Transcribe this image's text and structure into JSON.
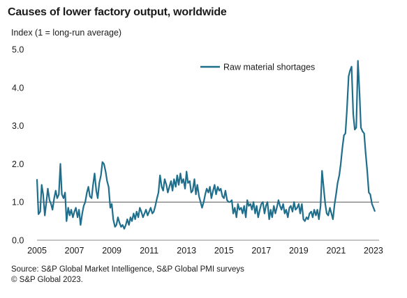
{
  "chart_data": {
    "type": "line",
    "title": "Causes of lower factory output, worldwide",
    "ylabel": "Index (1 = long-run average)",
    "xlabel": "",
    "ylim": [
      0,
      5
    ],
    "xlim": [
      2005,
      2023.3
    ],
    "yticks": [
      "0.0",
      "1.0",
      "2.0",
      "3.0",
      "4.0",
      "5.0"
    ],
    "xticks": [
      "2005",
      "2007",
      "2009",
      "2011",
      "2013",
      "2015",
      "2017",
      "2019",
      "2021",
      "2023"
    ],
    "reference_line": 1.0,
    "legend_position": "top-right",
    "color": "#1f6e8c",
    "series": [
      {
        "name": "Raw material shortages",
        "points": [
          [
            2005.0,
            1.6
          ],
          [
            2005.08,
            0.68
          ],
          [
            2005.17,
            0.75
          ],
          [
            2005.25,
            1.45
          ],
          [
            2005.33,
            1.2
          ],
          [
            2005.42,
            0.65
          ],
          [
            2005.5,
            1.0
          ],
          [
            2005.58,
            1.35
          ],
          [
            2005.67,
            1.05
          ],
          [
            2005.75,
            0.95
          ],
          [
            2005.83,
            0.8
          ],
          [
            2005.92,
            1.1
          ],
          [
            2006.0,
            1.3
          ],
          [
            2006.08,
            1.1
          ],
          [
            2006.17,
            1.2
          ],
          [
            2006.25,
            2.0
          ],
          [
            2006.33,
            1.2
          ],
          [
            2006.42,
            1.1
          ],
          [
            2006.5,
            1.25
          ],
          [
            2006.58,
            0.5
          ],
          [
            2006.67,
            0.85
          ],
          [
            2006.75,
            0.65
          ],
          [
            2006.83,
            0.8
          ],
          [
            2006.92,
            0.6
          ],
          [
            2007.0,
            0.75
          ],
          [
            2007.08,
            0.85
          ],
          [
            2007.17,
            0.6
          ],
          [
            2007.25,
            0.8
          ],
          [
            2007.33,
            0.4
          ],
          [
            2007.42,
            0.7
          ],
          [
            2007.5,
            0.9
          ],
          [
            2007.58,
            1.0
          ],
          [
            2007.67,
            1.25
          ],
          [
            2007.75,
            1.4
          ],
          [
            2007.83,
            1.15
          ],
          [
            2007.92,
            1.1
          ],
          [
            2008.0,
            1.45
          ],
          [
            2008.08,
            1.75
          ],
          [
            2008.17,
            1.3
          ],
          [
            2008.25,
            1.1
          ],
          [
            2008.33,
            1.5
          ],
          [
            2008.42,
            1.7
          ],
          [
            2008.5,
            2.05
          ],
          [
            2008.58,
            2.0
          ],
          [
            2008.67,
            1.8
          ],
          [
            2008.75,
            1.55
          ],
          [
            2008.83,
            1.4
          ],
          [
            2008.92,
            0.85
          ],
          [
            2009.0,
            0.95
          ],
          [
            2009.08,
            0.55
          ],
          [
            2009.17,
            0.35
          ],
          [
            2009.25,
            0.4
          ],
          [
            2009.33,
            0.6
          ],
          [
            2009.42,
            0.45
          ],
          [
            2009.5,
            0.35
          ],
          [
            2009.58,
            0.4
          ],
          [
            2009.67,
            0.3
          ],
          [
            2009.75,
            0.4
          ],
          [
            2009.83,
            0.55
          ],
          [
            2009.92,
            0.4
          ],
          [
            2010.0,
            0.6
          ],
          [
            2010.08,
            0.5
          ],
          [
            2010.17,
            0.7
          ],
          [
            2010.25,
            0.55
          ],
          [
            2010.33,
            0.75
          ],
          [
            2010.42,
            0.6
          ],
          [
            2010.5,
            0.85
          ],
          [
            2010.58,
            0.75
          ],
          [
            2010.67,
            0.6
          ],
          [
            2010.75,
            0.7
          ],
          [
            2010.83,
            0.8
          ],
          [
            2010.92,
            0.65
          ],
          [
            2011.0,
            0.75
          ],
          [
            2011.08,
            0.85
          ],
          [
            2011.17,
            0.7
          ],
          [
            2011.25,
            0.75
          ],
          [
            2011.33,
            0.9
          ],
          [
            2011.42,
            1.1
          ],
          [
            2011.5,
            1.25
          ],
          [
            2011.58,
            1.7
          ],
          [
            2011.67,
            1.4
          ],
          [
            2011.75,
            1.3
          ],
          [
            2011.83,
            1.6
          ],
          [
            2011.92,
            1.45
          ],
          [
            2012.0,
            1.25
          ],
          [
            2012.08,
            1.4
          ],
          [
            2012.17,
            1.55
          ],
          [
            2012.25,
            1.3
          ],
          [
            2012.33,
            1.6
          ],
          [
            2012.42,
            1.4
          ],
          [
            2012.5,
            1.7
          ],
          [
            2012.58,
            1.45
          ],
          [
            2012.67,
            1.75
          ],
          [
            2012.75,
            1.5
          ],
          [
            2012.83,
            1.6
          ],
          [
            2012.92,
            1.35
          ],
          [
            2013.0,
            1.8
          ],
          [
            2013.08,
            1.5
          ],
          [
            2013.17,
            1.55
          ],
          [
            2013.25,
            1.25
          ],
          [
            2013.33,
            1.3
          ],
          [
            2013.42,
            1.6
          ],
          [
            2013.5,
            1.2
          ],
          [
            2013.58,
            1.45
          ],
          [
            2013.67,
            1.15
          ],
          [
            2013.75,
            1.0
          ],
          [
            2013.83,
            0.85
          ],
          [
            2013.92,
            1.0
          ],
          [
            2014.0,
            1.2
          ],
          [
            2014.08,
            1.35
          ],
          [
            2014.17,
            1.25
          ],
          [
            2014.25,
            1.4
          ],
          [
            2014.33,
            1.1
          ],
          [
            2014.42,
            1.3
          ],
          [
            2014.5,
            1.45
          ],
          [
            2014.58,
            1.2
          ],
          [
            2014.67,
            1.4
          ],
          [
            2014.75,
            1.3
          ],
          [
            2014.83,
            1.35
          ],
          [
            2014.92,
            1.15
          ],
          [
            2015.0,
            1.1
          ],
          [
            2015.08,
            1.3
          ],
          [
            2015.17,
            1.05
          ],
          [
            2015.25,
            1.0
          ],
          [
            2015.33,
            1.0
          ],
          [
            2015.42,
            1.05
          ],
          [
            2015.5,
            0.7
          ],
          [
            2015.58,
            0.85
          ],
          [
            2015.67,
            0.6
          ],
          [
            2015.75,
            0.95
          ],
          [
            2015.83,
            0.8
          ],
          [
            2015.92,
            0.85
          ],
          [
            2016.0,
            0.7
          ],
          [
            2016.08,
            0.9
          ],
          [
            2016.17,
            0.6
          ],
          [
            2016.25,
            1.05
          ],
          [
            2016.33,
            0.9
          ],
          [
            2016.42,
            0.95
          ],
          [
            2016.5,
            0.8
          ],
          [
            2016.58,
            1.0
          ],
          [
            2016.67,
            0.7
          ],
          [
            2016.75,
            0.9
          ],
          [
            2016.83,
            0.6
          ],
          [
            2016.92,
            0.8
          ],
          [
            2017.0,
            0.95
          ],
          [
            2017.08,
            1.0
          ],
          [
            2017.17,
            0.7
          ],
          [
            2017.25,
            0.9
          ],
          [
            2017.33,
            1.0
          ],
          [
            2017.42,
            0.55
          ],
          [
            2017.5,
            0.8
          ],
          [
            2017.58,
            0.6
          ],
          [
            2017.67,
            0.9
          ],
          [
            2017.75,
            0.7
          ],
          [
            2017.83,
            0.85
          ],
          [
            2017.92,
            1.05
          ],
          [
            2018.0,
            0.9
          ],
          [
            2018.08,
            0.8
          ],
          [
            2018.17,
            0.95
          ],
          [
            2018.25,
            0.7
          ],
          [
            2018.33,
            0.8
          ],
          [
            2018.42,
            0.6
          ],
          [
            2018.5,
            0.85
          ],
          [
            2018.58,
            0.9
          ],
          [
            2018.67,
            0.75
          ],
          [
            2018.75,
            1.0
          ],
          [
            2018.83,
            0.8
          ],
          [
            2018.92,
            0.85
          ],
          [
            2019.0,
            0.95
          ],
          [
            2019.08,
            0.7
          ],
          [
            2019.17,
            0.95
          ],
          [
            2019.25,
            0.55
          ],
          [
            2019.33,
            0.5
          ],
          [
            2019.42,
            0.6
          ],
          [
            2019.5,
            0.55
          ],
          [
            2019.58,
            0.7
          ],
          [
            2019.67,
            0.75
          ],
          [
            2019.75,
            0.6
          ],
          [
            2019.83,
            0.8
          ],
          [
            2019.92,
            0.65
          ],
          [
            2020.0,
            0.8
          ],
          [
            2020.08,
            0.55
          ],
          [
            2020.17,
            0.9
          ],
          [
            2020.25,
            1.82
          ],
          [
            2020.33,
            1.4
          ],
          [
            2020.42,
            0.95
          ],
          [
            2020.5,
            0.7
          ],
          [
            2020.58,
            0.65
          ],
          [
            2020.67,
            0.85
          ],
          [
            2020.75,
            0.7
          ],
          [
            2020.83,
            0.55
          ],
          [
            2020.92,
            0.95
          ],
          [
            2021.0,
            1.2
          ],
          [
            2021.08,
            1.5
          ],
          [
            2021.17,
            1.7
          ],
          [
            2021.25,
            2.0
          ],
          [
            2021.33,
            2.4
          ],
          [
            2021.42,
            2.75
          ],
          [
            2021.5,
            2.8
          ],
          [
            2021.58,
            3.4
          ],
          [
            2021.67,
            4.3
          ],
          [
            2021.75,
            4.45
          ],
          [
            2021.83,
            4.55
          ],
          [
            2021.92,
            3.3
          ],
          [
            2022.0,
            2.9
          ],
          [
            2022.08,
            2.95
          ],
          [
            2022.17,
            4.7
          ],
          [
            2022.25,
            3.9
          ],
          [
            2022.33,
            2.95
          ],
          [
            2022.42,
            2.85
          ],
          [
            2022.5,
            2.8
          ],
          [
            2022.58,
            2.3
          ],
          [
            2022.67,
            1.8
          ],
          [
            2022.75,
            1.25
          ],
          [
            2022.83,
            1.2
          ],
          [
            2022.92,
            0.95
          ],
          [
            2023.0,
            0.85
          ],
          [
            2023.08,
            0.75
          ]
        ]
      }
    ],
    "source_line1": "Source: S&P Global Market Intelligence, S&P Global PMI surveys",
    "source_line2": "© S&P Global 2023."
  }
}
